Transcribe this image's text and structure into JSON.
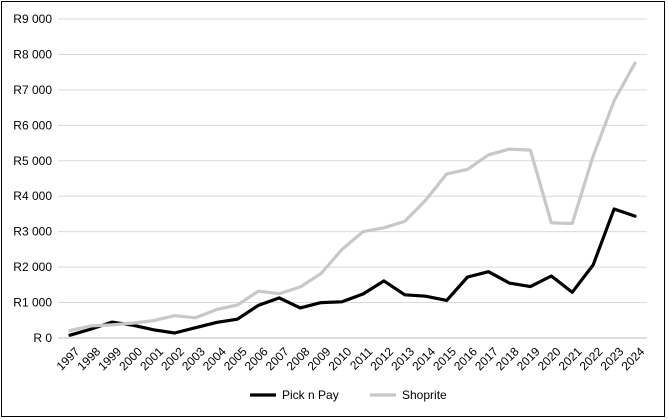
{
  "chart_data": {
    "type": "line",
    "title": "",
    "xlabel": "",
    "ylabel": "",
    "ylim": [
      0,
      9000
    ],
    "y_ticks": [
      0,
      1000,
      2000,
      3000,
      4000,
      5000,
      6000,
      7000,
      8000,
      9000
    ],
    "y_tick_labels": [
      "R 0",
      "R1 000",
      "R2 000",
      "R3 000",
      "R4 000",
      "R5 000",
      "R6 000",
      "R7 000",
      "R8 000",
      "R9 000"
    ],
    "categories": [
      "1997",
      "1998",
      "1999",
      "2000",
      "2001",
      "2002",
      "2003",
      "2004",
      "2005",
      "2006",
      "2007",
      "2008",
      "2009",
      "2010",
      "2011",
      "2012",
      "2013",
      "2014",
      "2015",
      "2016",
      "2017",
      "2018",
      "2019",
      "2020",
      "2021",
      "2022",
      "2023",
      "2024"
    ],
    "grid": true,
    "legend_position": "bottom",
    "series": [
      {
        "name": "Pick n Pay",
        "color": "#000000",
        "values": [
          80,
          250,
          450,
          360,
          230,
          140,
          290,
          440,
          530,
          920,
          1130,
          850,
          1000,
          1020,
          1240,
          1610,
          1220,
          1180,
          1060,
          1720,
          1870,
          1550,
          1450,
          1750,
          1290,
          2060,
          3640,
          3440
        ]
      },
      {
        "name": "Shoprite",
        "color": "#c8c8c8",
        "values": [
          210,
          340,
          370,
          420,
          490,
          630,
          570,
          800,
          930,
          1320,
          1250,
          1440,
          1820,
          2500,
          3000,
          3110,
          3290,
          3890,
          4630,
          4760,
          5170,
          5330,
          5300,
          3250,
          3230,
          5130,
          6690,
          7760
        ]
      }
    ]
  }
}
